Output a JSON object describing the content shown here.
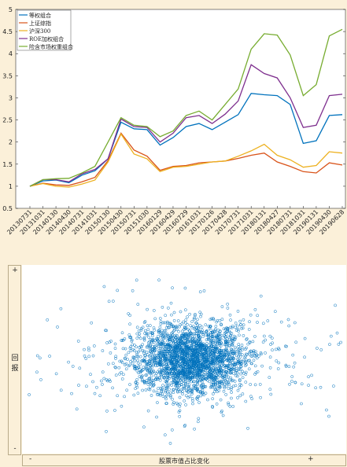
{
  "chart_data": [
    {
      "type": "line",
      "x": [
        "20130731",
        "20131031",
        "20140130",
        "20140430",
        "20140731",
        "20141031",
        "20150130",
        "20150430",
        "20150731",
        "20151030",
        "20160129",
        "20160429",
        "20160729",
        "20161031",
        "20170126",
        "20170428",
        "20170731",
        "20171031",
        "20180131",
        "20180427",
        "20180731",
        "20181031",
        "20190131",
        "20190430",
        "20190628"
      ],
      "ylim": [
        0.5,
        5
      ],
      "yticks": [
        0.5,
        1,
        1.5,
        2,
        2.5,
        3,
        3.5,
        4,
        4.5,
        5
      ],
      "legend_position": "top-left",
      "grid": false,
      "series": [
        {
          "name": "等权组合",
          "color": "#0072bd",
          "values": [
            1.0,
            1.12,
            1.14,
            1.08,
            1.25,
            1.35,
            1.62,
            2.45,
            2.3,
            2.28,
            1.93,
            2.1,
            2.35,
            2.42,
            2.28,
            2.45,
            2.62,
            3.1,
            3.07,
            3.05,
            2.85,
            1.97,
            2.03,
            2.6,
            2.62
          ]
        },
        {
          "name": "上证综指",
          "color": "#d95319",
          "values": [
            1.0,
            1.07,
            1.03,
            1.02,
            1.1,
            1.2,
            1.58,
            2.2,
            1.82,
            1.68,
            1.36,
            1.45,
            1.47,
            1.53,
            1.55,
            1.57,
            1.63,
            1.7,
            1.75,
            1.55,
            1.45,
            1.33,
            1.3,
            1.53,
            1.48
          ]
        },
        {
          "name": "沪深300",
          "color": "#edb120",
          "values": [
            1.0,
            1.06,
            1.0,
            0.98,
            1.05,
            1.14,
            1.55,
            2.18,
            1.73,
            1.62,
            1.33,
            1.43,
            1.45,
            1.5,
            1.55,
            1.57,
            1.68,
            1.8,
            1.95,
            1.7,
            1.6,
            1.43,
            1.47,
            1.78,
            1.75
          ]
        },
        {
          "name": "ROE加权组合",
          "color": "#7e2f8e",
          "values": [
            1.0,
            1.15,
            1.15,
            1.1,
            1.28,
            1.38,
            1.62,
            2.52,
            2.35,
            2.33,
            2.0,
            2.2,
            2.55,
            2.6,
            2.42,
            2.63,
            2.93,
            3.75,
            3.55,
            3.45,
            3.0,
            2.33,
            2.38,
            3.05,
            3.08
          ]
        },
        {
          "name": "险含市场权重组合",
          "color": "#77ac30",
          "values": [
            1.0,
            1.15,
            1.17,
            1.18,
            1.3,
            1.45,
            2.0,
            2.55,
            2.38,
            2.35,
            2.12,
            2.25,
            2.6,
            2.7,
            2.5,
            2.85,
            3.2,
            4.1,
            4.45,
            4.42,
            3.97,
            3.05,
            3.3,
            4.4,
            4.55
          ]
        }
      ]
    },
    {
      "type": "scatter",
      "xlabel": "股票市值占比变化",
      "ylabel": "回报",
      "x_axis_marks": {
        "low": "-",
        "high": "+"
      },
      "y_axis_marks": {
        "low": "-",
        "high": "+"
      },
      "xlim": [
        -1,
        1
      ],
      "ylim": [
        -1,
        1
      ],
      "marker": "open-circle",
      "color": "#0072bd",
      "note": "dense cloud of ~3000 points centred near (0.0, 0.0), spread wider horizontally",
      "points": []
    }
  ]
}
